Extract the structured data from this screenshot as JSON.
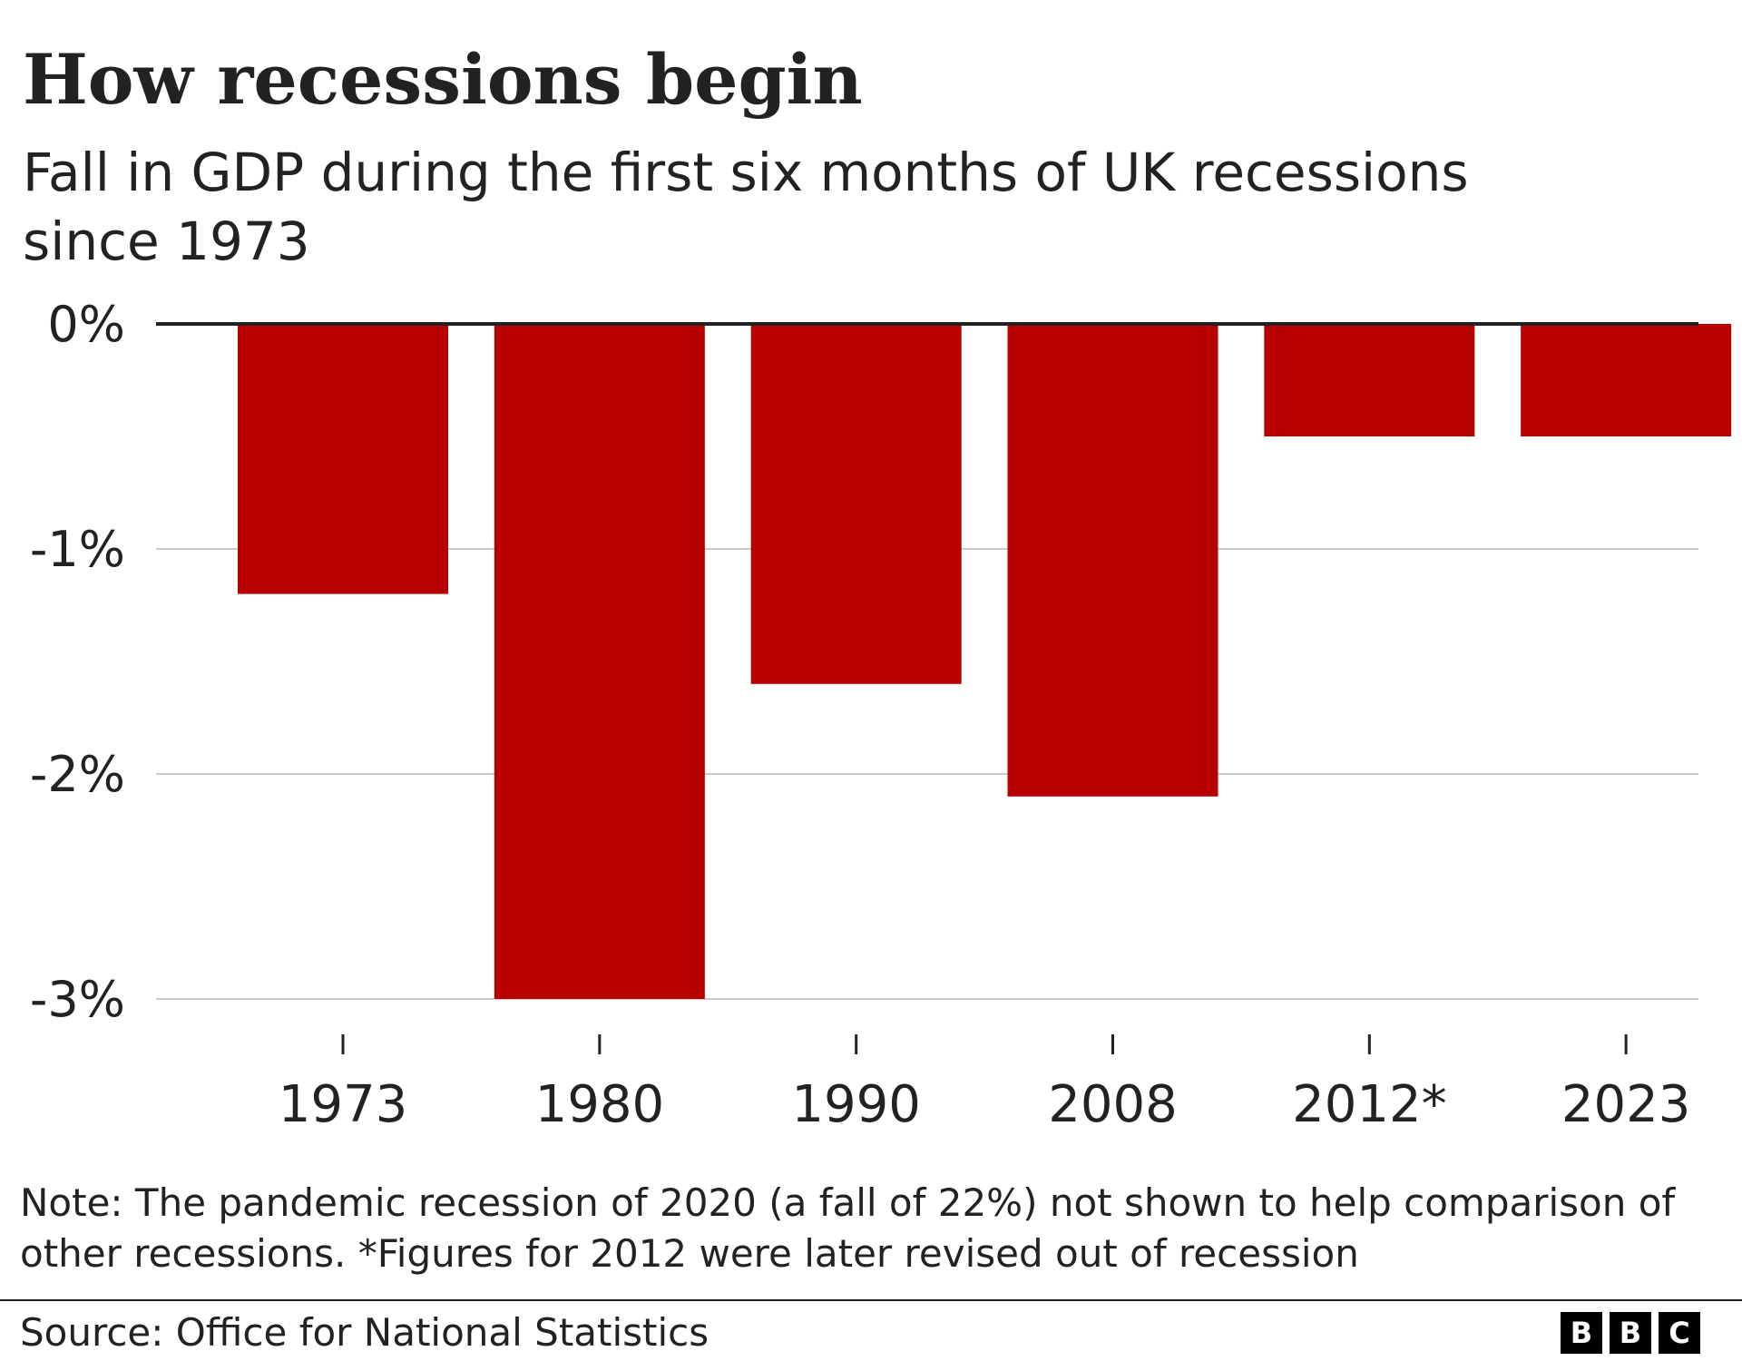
{
  "header": {
    "title": "How recessions begin",
    "subtitle": "Fall in GDP during the first six months of UK recessions since 1973"
  },
  "chart_data": {
    "type": "bar",
    "title": "How recessions begin",
    "subtitle": "Fall in GDP during the first six months of UK recessions since 1973",
    "categories": [
      "1973",
      "1980",
      "1990",
      "2008",
      "2012*",
      "2023"
    ],
    "values": [
      -1.2,
      -3.0,
      -1.6,
      -2.1,
      -0.5,
      -0.5
    ],
    "xlabel": "",
    "ylabel": "",
    "ylim": [
      -3,
      0
    ],
    "yticks": [
      0,
      -1,
      -2,
      -3
    ],
    "ytick_labels": [
      "0%",
      "-1%",
      "-2%",
      "-3%"
    ],
    "grid": true,
    "legend": "none",
    "bar_color": "#b80000",
    "baseline_color": "#222222",
    "grid_color": "#cccccc"
  },
  "footer": {
    "note": "Note: The pandemic recession of 2020 (a fall of 22%) not shown to help comparison of other recessions. *Figures for 2012 were later revised out of recession",
    "source": "Source: Office for National Statistics",
    "logo_letters": [
      "B",
      "B",
      "C"
    ]
  }
}
